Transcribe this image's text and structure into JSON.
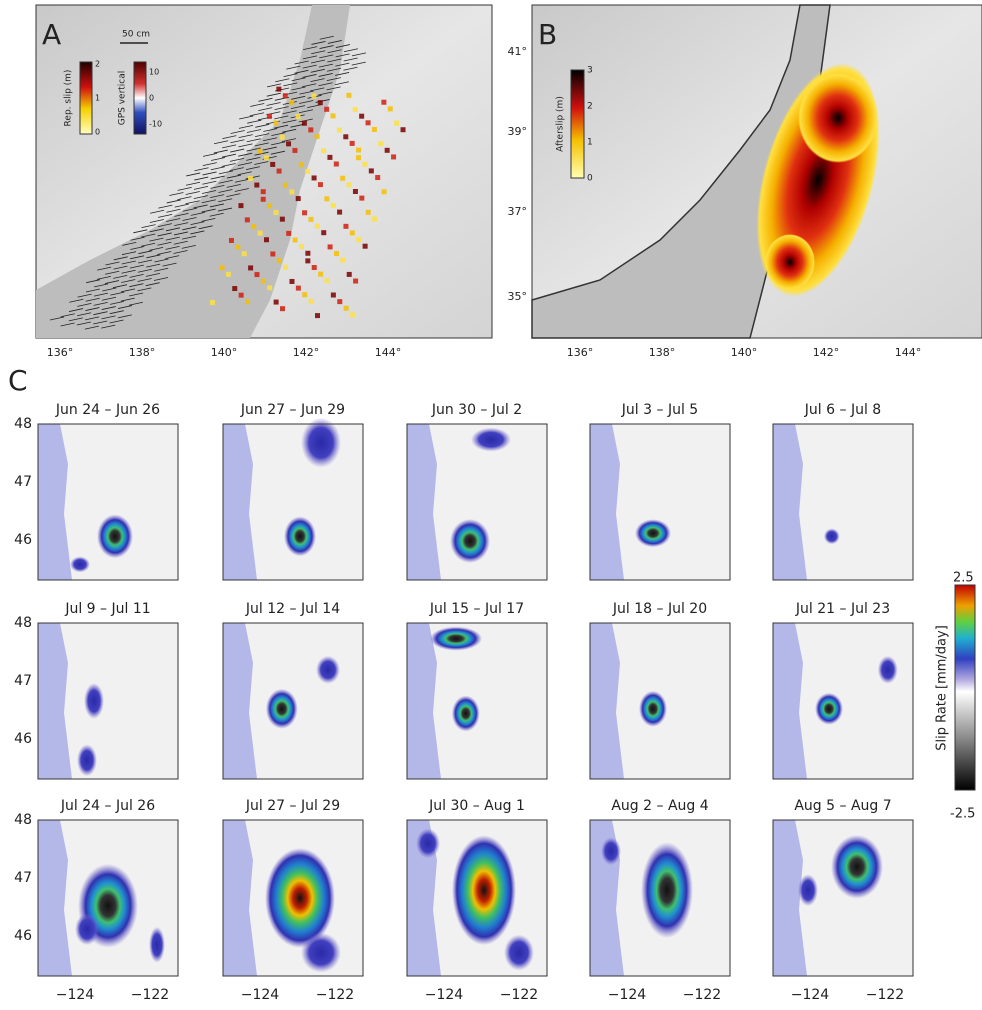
{
  "panels": {
    "a": {
      "label": "A",
      "scale": "50 cm",
      "colorbar1": {
        "title": "Rep. slip (m)",
        "ticks": [
          "2",
          "1",
          "0"
        ]
      },
      "colorbar2": {
        "title": "GPS vertical",
        "ticks": [
          "10",
          "0",
          "-10"
        ]
      },
      "xticks": [
        "136°",
        "138°",
        "140°",
        "142°",
        "144°"
      ]
    },
    "b": {
      "label": "B",
      "colorbar": {
        "title": "Afterslip (m)",
        "ticks": [
          "3",
          "2",
          "1",
          "0"
        ]
      },
      "yticks": [
        "41°",
        "39°",
        "37°",
        "35°"
      ],
      "xticks": [
        "136°",
        "138°",
        "140°",
        "142°",
        "144°"
      ]
    },
    "c": {
      "label": "C",
      "frames": [
        "Jun 24 – Jun 26",
        "Jun 27 – Jun 29",
        "Jun 30 – Jul 2",
        "Jul 3 – Jul 5",
        "Jul 6 – Jul 8",
        "Jul 9 – Jul 11",
        "Jul 12 – Jul 14",
        "Jul 15 – Jul 17",
        "Jul 18 – Jul 20",
        "Jul 21 – Jul 23",
        "Jul 24 – Jul 26",
        "Jul 27 – Jul 29",
        "Jul 30 – Aug 1",
        "Aug 2 – Aug 4",
        "Aug 5 – Aug 7"
      ],
      "yticks": [
        "48",
        "47",
        "46"
      ],
      "xticks": [
        "−124",
        "−122"
      ],
      "colorbar": {
        "title": "Slip Rate [mm/day]",
        "max": "2.5",
        "min": "-2.5"
      }
    }
  }
}
